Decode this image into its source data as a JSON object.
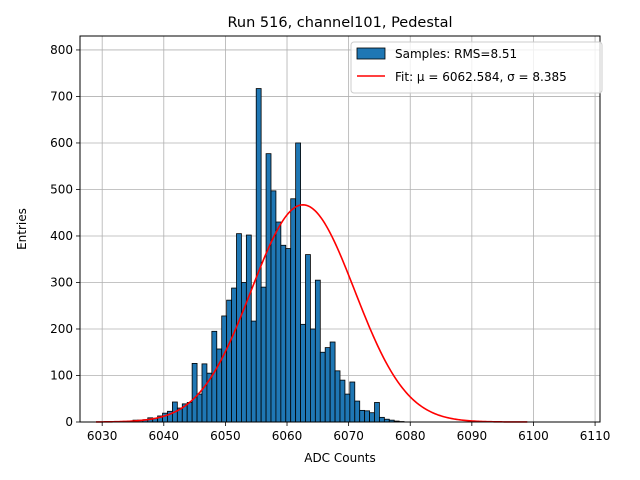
{
  "chart_data": {
    "type": "bar",
    "title": "Run 516, channel101, Pedestal",
    "xlabel": "ADC Counts",
    "ylabel": "Entries",
    "xlim": [
      6026.4,
      6110.8
    ],
    "ylim": [
      0,
      830
    ],
    "xticks": [
      6030,
      6040,
      6050,
      6060,
      6070,
      6080,
      6090,
      6100,
      6110
    ],
    "yticks": [
      0,
      100,
      200,
      300,
      400,
      500,
      600,
      700,
      800
    ],
    "grid": true,
    "legend_position": "top-right",
    "histogram": {
      "name": "Samples: RMS=8.51",
      "color": "#1f77b4",
      "edge_color": "#000000",
      "bin_width": 0.8,
      "bin_start": 6035,
      "counts": [
        4,
        4,
        5,
        9,
        8,
        13,
        19,
        23,
        43,
        30,
        39,
        42,
        126,
        60,
        125,
        105,
        195,
        157,
        228,
        262,
        288,
        405,
        300,
        402,
        217,
        717,
        290,
        577,
        497,
        430,
        380,
        373,
        480,
        600,
        210,
        360,
        200,
        305,
        150,
        160,
        172,
        110,
        90,
        60,
        86,
        45,
        25,
        24,
        20,
        42,
        10,
        6,
        4,
        2,
        1
      ]
    },
    "fit": {
      "name": "Fit: μ = 6062.584, σ = 8.385",
      "color": "#ff0000",
      "mu": 6062.584,
      "sigma": 8.385,
      "amplitude": 467,
      "x_range": [
        6029,
        6099
      ]
    }
  }
}
